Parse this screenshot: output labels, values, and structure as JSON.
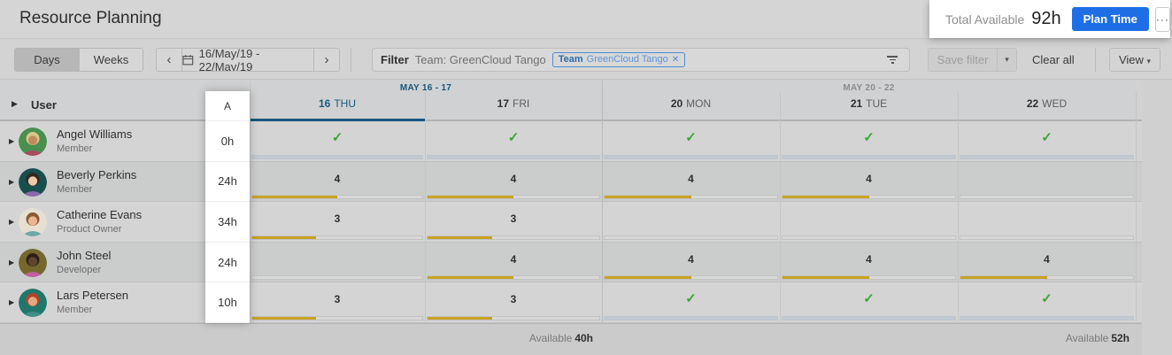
{
  "icons": {
    "check": "✓",
    "chevron_left": "‹",
    "chevron_right": "›",
    "caret_down": "▾",
    "caret_right": "▶",
    "close": "✕",
    "more": "···"
  },
  "page": {
    "title": "Resource Planning"
  },
  "total_panel": {
    "label": "Total Available",
    "value": "92h",
    "plan_button": "Plan Time"
  },
  "toolbar": {
    "days": "Days",
    "weeks": "Weeks",
    "date_range": "16/May/19 - 22/May/19",
    "filter_label": "Filter",
    "filter_summary": "Team: GreenCloud Tango",
    "filter_tag": {
      "prefix": "Team",
      "name": "GreenCloud Tango"
    },
    "save_filter": "Save filter",
    "clear_all": "Clear all",
    "view": "View"
  },
  "grid": {
    "user_header": "User",
    "availability_header": "A",
    "week_groups": [
      {
        "label": "MAY 16 - 17"
      },
      {
        "label": "MAY 20 - 22"
      }
    ],
    "days": [
      {
        "num": "16",
        "name": "THU",
        "selected": true
      },
      {
        "num": "17",
        "name": "FRI"
      },
      {
        "num": "20",
        "name": "MON"
      },
      {
        "num": "21",
        "name": "TUE"
      },
      {
        "num": "22",
        "name": "WED"
      }
    ],
    "rows": [
      {
        "name": "Angel Williams",
        "role": "Member",
        "available": "0h",
        "cells": [
          {
            "type": "check",
            "fill": 100
          },
          {
            "type": "check",
            "fill": 100
          },
          {
            "type": "check",
            "fill": 100
          },
          {
            "type": "check",
            "fill": 100
          },
          {
            "type": "check",
            "fill": 100
          }
        ]
      },
      {
        "name": "Beverly Perkins",
        "role": "Member",
        "available": "24h",
        "cells": [
          {
            "type": "number",
            "value": "4",
            "fill": 50
          },
          {
            "type": "number",
            "value": "4",
            "fill": 50
          },
          {
            "type": "number",
            "value": "4",
            "fill": 50
          },
          {
            "type": "number",
            "value": "4",
            "fill": 50
          },
          {
            "type": "empty",
            "fill": 0
          }
        ]
      },
      {
        "name": "Catherine Evans",
        "role": "Product Owner",
        "available": "34h",
        "cells": [
          {
            "type": "number",
            "value": "3",
            "fill": 37.5
          },
          {
            "type": "number",
            "value": "3",
            "fill": 37.5
          },
          {
            "type": "empty",
            "fill": 0
          },
          {
            "type": "empty",
            "fill": 0
          },
          {
            "type": "empty",
            "fill": 0
          }
        ]
      },
      {
        "name": "John Steel",
        "role": "Developer",
        "available": "24h",
        "cells": [
          {
            "type": "empty",
            "fill": 0
          },
          {
            "type": "number",
            "value": "4",
            "fill": 50
          },
          {
            "type": "number",
            "value": "4",
            "fill": 50
          },
          {
            "type": "number",
            "value": "4",
            "fill": 50
          },
          {
            "type": "number",
            "value": "4",
            "fill": 50
          }
        ]
      },
      {
        "name": "Lars Petersen",
        "role": "Member",
        "available": "10h",
        "cells": [
          {
            "type": "number",
            "value": "3",
            "fill": 37.5
          },
          {
            "type": "number",
            "value": "3",
            "fill": 37.5
          },
          {
            "type": "check",
            "fill": 100
          },
          {
            "type": "check",
            "fill": 100
          },
          {
            "type": "check",
            "fill": 100
          }
        ]
      }
    ],
    "footer": {
      "label1": "Available",
      "value1": "40h",
      "label2": "Available",
      "value2": "52h"
    }
  },
  "colors": {
    "plan_button_blue": "#1e6fe6",
    "selected_day_blue": "#19577d",
    "bar_gold": "#c7a323",
    "bar_full_gray": "#c2c9d1",
    "check_green": "#3fa337",
    "spotlight_white": "#ffffff"
  }
}
